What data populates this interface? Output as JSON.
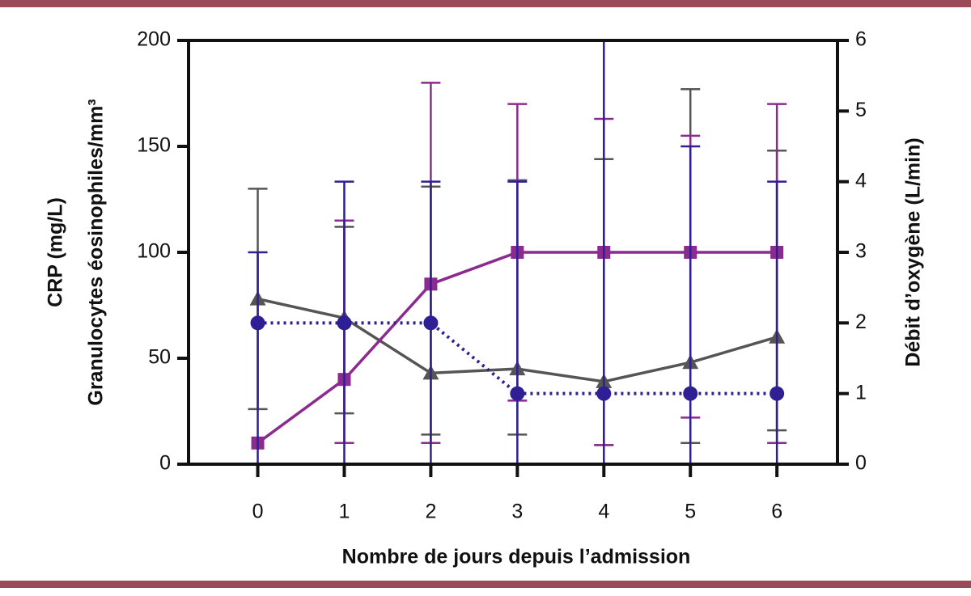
{
  "chart_data": {
    "type": "line",
    "xlabel": "Nombre de jours depuis l’admission",
    "ylabel": [
      "CRP (mg/L)",
      "Granulocytes éosinophiles/mm³"
    ],
    "y2label": "Débit d’oxygène (L/min)",
    "x": [
      0,
      1,
      2,
      3,
      4,
      5,
      6
    ],
    "xlim": [
      -0.8,
      6.7
    ],
    "xticks": [
      0,
      1,
      2,
      3,
      4,
      5,
      6
    ],
    "ylim": [
      0,
      200
    ],
    "yticks": [
      0,
      50,
      100,
      150,
      200
    ],
    "y2lim": [
      0,
      6
    ],
    "y2ticks": [
      0,
      1,
      2,
      3,
      4,
      5,
      6
    ],
    "series": [
      {
        "color": "#555555",
        "marker": "triangle",
        "dash": false,
        "values": [
          78,
          69,
          43,
          45,
          39,
          48,
          60
        ],
        "lower": [
          26,
          24,
          14,
          14,
          9,
          10,
          16
        ],
        "upper": [
          130,
          112,
          131,
          134,
          144,
          177,
          148
        ]
      },
      {
        "color": "#8b2a8f",
        "marker": "square",
        "dash": false,
        "values": [
          10,
          40,
          85,
          100,
          100,
          100,
          100
        ],
        "lower": [
          null,
          10,
          10,
          30,
          9,
          22,
          10
        ],
        "upper": [
          null,
          115,
          180,
          170,
          163,
          155,
          170
        ]
      },
      {
        "color": "#2e1f94",
        "marker": "circle",
        "dash": true,
        "axis": "y2",
        "values": [
          2,
          2,
          2,
          1,
          1,
          1,
          1
        ],
        "lower": [
          0,
          0,
          0,
          0,
          0,
          0,
          0
        ],
        "upper": [
          3,
          4,
          4,
          4,
          6,
          4.5,
          4
        ]
      }
    ]
  }
}
